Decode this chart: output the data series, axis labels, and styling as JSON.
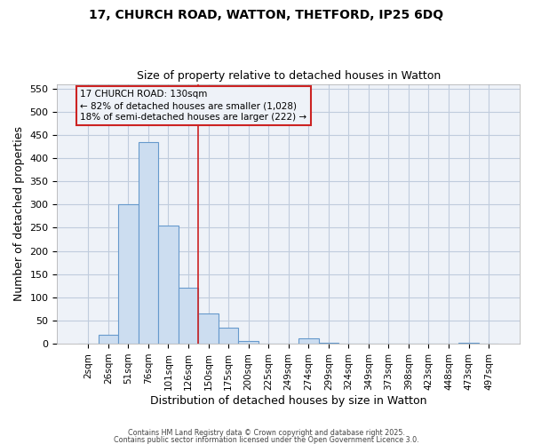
{
  "title_line1": "17, CHURCH ROAD, WATTON, THETFORD, IP25 6DQ",
  "title_line2": "Size of property relative to detached houses in Watton",
  "xlabel": "Distribution of detached houses by size in Watton",
  "ylabel": "Number of detached properties",
  "bar_color": "#ccddf0",
  "bar_edge_color": "#6699cc",
  "grid_color": "#c0ccdd",
  "background_color": "#ffffff",
  "ax_background_color": "#eef2f8",
  "categories": [
    "2sqm",
    "26sqm",
    "51sqm",
    "76sqm",
    "101sqm",
    "126sqm",
    "150sqm",
    "175sqm",
    "200sqm",
    "225sqm",
    "249sqm",
    "274sqm",
    "299sqm",
    "324sqm",
    "349sqm",
    "373sqm",
    "398sqm",
    "423sqm",
    "448sqm",
    "473sqm",
    "497sqm"
  ],
  "values": [
    0,
    20,
    300,
    435,
    255,
    120,
    65,
    35,
    5,
    0,
    0,
    12,
    3,
    0,
    0,
    0,
    0,
    0,
    0,
    3,
    0
  ],
  "ylim": [
    0,
    560
  ],
  "yticks": [
    0,
    50,
    100,
    150,
    200,
    250,
    300,
    350,
    400,
    450,
    500,
    550
  ],
  "red_line_x": 5.5,
  "annotation_text_line1": "17 CHURCH ROAD: 130sqm",
  "annotation_text_line2": "← 82% of detached houses are smaller (1,028)",
  "annotation_text_line3": "18% of semi-detached houses are larger (222) →",
  "footer_line1": "Contains HM Land Registry data © Crown copyright and database right 2025.",
  "footer_line2": "Contains public sector information licensed under the Open Government Licence 3.0."
}
